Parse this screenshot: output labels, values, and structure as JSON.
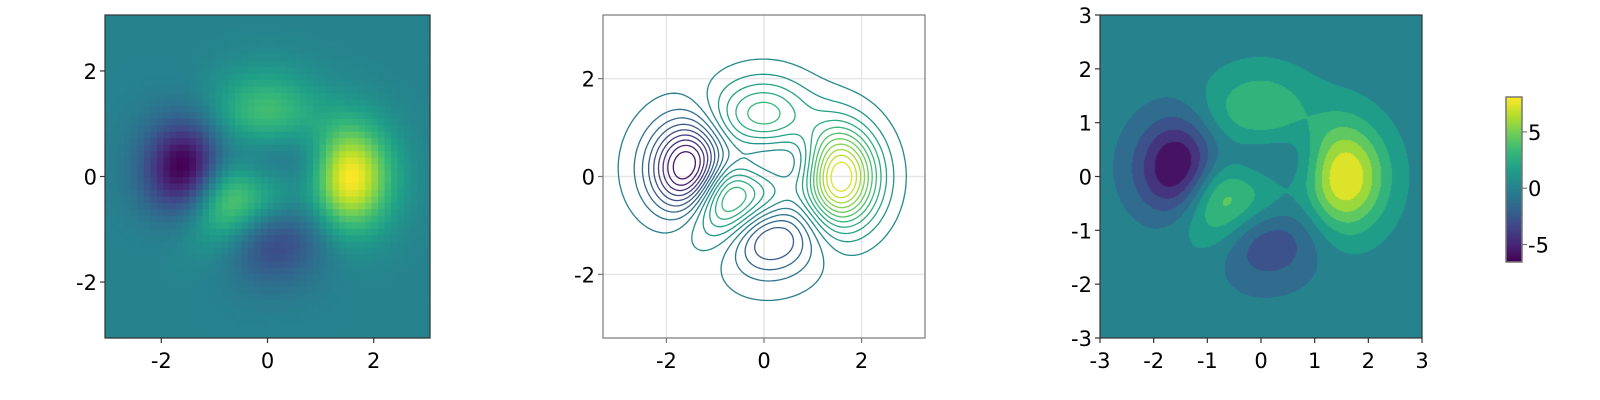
{
  "chart_data": [
    {
      "type": "heatmap",
      "z_function": "peaks(y, x)",
      "grid": {
        "x_range": [
          -3,
          3
        ],
        "y_range": [
          -3,
          3
        ],
        "n": 50
      },
      "xlim": [
        -3.06,
        3.06
      ],
      "ylim": [
        -3.06,
        3.06
      ],
      "xticks": [
        -2,
        0,
        2
      ],
      "yticks": [
        -2,
        0,
        2
      ],
      "xtick_labels": [
        "-2",
        "0",
        "2"
      ],
      "ytick_labels": [
        "-2",
        "0",
        "2"
      ],
      "colormap": "viridis",
      "grid_lines": false
    },
    {
      "type": "contour",
      "z_function": "peaks(y, x)",
      "grid": {
        "x_range": [
          -3,
          3
        ],
        "y_range": [
          -3,
          3
        ],
        "n": 100
      },
      "levels": 20,
      "xlim": [
        -3.3,
        3.3
      ],
      "ylim": [
        -3.3,
        3.3
      ],
      "xticks": [
        -2,
        0,
        2
      ],
      "yticks": [
        -2,
        0,
        2
      ],
      "xtick_labels": [
        "-2",
        "0",
        "2"
      ],
      "ytick_labels": [
        "-2",
        "0",
        "2"
      ],
      "colormap": "viridis",
      "grid_lines": true
    },
    {
      "type": "filled-contour",
      "z_function": "peaks(y, x)",
      "grid": {
        "x_range": [
          -3,
          3
        ],
        "y_range": [
          -3,
          3
        ],
        "n": 200
      },
      "levels": 10,
      "xlim": [
        -3,
        3
      ],
      "ylim": [
        -3,
        3
      ],
      "xticks": [
        -3,
        -2,
        -1,
        0,
        1,
        2,
        3
      ],
      "yticks": [
        -3,
        -2,
        -1,
        0,
        1,
        2,
        3
      ],
      "xtick_labels": [
        "-3",
        "-2",
        "-1",
        "0",
        "1",
        "2",
        "3"
      ],
      "ytick_labels": [
        "-3",
        "-2",
        "-1",
        "0",
        "1",
        "2",
        "3"
      ],
      "colormap": "viridis",
      "grid_lines": false,
      "colorbar": {
        "zlim": [
          -6.55,
          8.1
        ],
        "ticks": [
          -5,
          0,
          5
        ],
        "tick_labels": [
          "-5",
          "0",
          "5"
        ]
      }
    }
  ]
}
